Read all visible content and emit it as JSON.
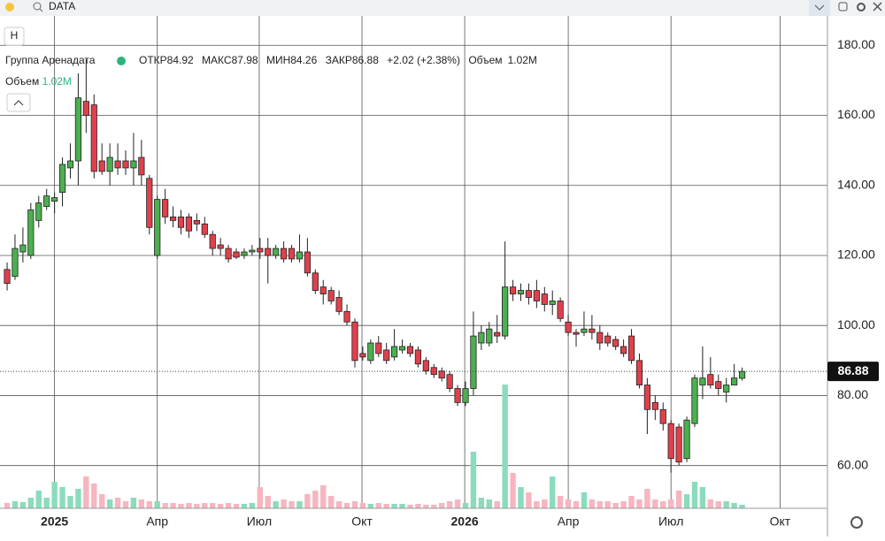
{
  "search": "DATA",
  "interval_button": "Н",
  "chart_data": {
    "type": "candlestick",
    "name": "Группа Аренадата",
    "legend": {
      "open_label": "ОТКР",
      "high_label": "МАКС",
      "low_label": "МИН",
      "close_label": "ЗАКР",
      "change": "+2.02 (+2.38%)",
      "volume_label": "Объем",
      "volume_value": "1.02M"
    },
    "open": [
      116,
      114,
      121,
      120,
      130,
      134,
      135.5,
      138,
      145,
      147,
      164,
      163,
      147,
      144,
      147,
      147,
      145,
      148,
      142,
      120,
      136,
      131,
      131,
      131,
      130,
      129,
      126,
      123,
      122,
      121,
      120,
      121,
      122,
      122,
      120,
      122,
      122,
      119,
      121,
      115,
      111,
      110,
      108,
      104,
      101,
      92,
      90,
      95,
      93,
      91,
      93,
      94,
      93,
      90,
      88,
      87,
      86,
      82,
      78,
      82,
      95,
      95,
      98,
      97,
      111,
      109,
      110,
      110,
      109,
      106,
      107,
      101,
      98,
      98,
      99,
      98,
      97,
      96,
      94,
      97,
      90,
      83,
      78,
      76,
      72,
      71,
      62,
      72,
      83,
      86,
      84,
      81,
      83,
      84.92
    ],
    "close": [
      112,
      122,
      123,
      133,
      135,
      137,
      136.5,
      146,
      147,
      165,
      160,
      144,
      144,
      148,
      145,
      145,
      147,
      143,
      128,
      136,
      131,
      130,
      128,
      127,
      129,
      126,
      122,
      122,
      119,
      119.5,
      121,
      121.5,
      121,
      120,
      122,
      119,
      119,
      121,
      115,
      110,
      109,
      107,
      104,
      101,
      90,
      91,
      95,
      92,
      90,
      94,
      94,
      92,
      89,
      87,
      86,
      85,
      82,
      78,
      82,
      97,
      98,
      99,
      97,
      111,
      109,
      110,
      108,
      107,
      106,
      107,
      102,
      98,
      97.5,
      99,
      98,
      95,
      95,
      94,
      92,
      90,
      83,
      76,
      76,
      72,
      62,
      61,
      73,
      85,
      85,
      83,
      82,
      83,
      85,
      86.88
    ],
    "high": [
      118,
      126,
      128,
      135,
      137,
      139,
      138,
      148,
      152,
      172,
      176,
      166,
      152,
      152,
      152,
      150,
      155,
      153,
      143,
      137,
      139,
      134,
      133,
      132,
      132,
      131,
      127,
      125,
      123,
      122,
      122,
      123,
      125,
      125,
      123,
      124,
      123,
      126,
      125,
      116,
      113,
      111,
      110,
      106,
      102,
      94,
      96,
      97,
      95,
      99,
      96,
      95,
      94,
      91,
      89,
      88,
      87,
      83,
      84,
      104,
      100,
      101,
      103,
      124,
      113,
      112,
      112,
      113,
      111,
      110,
      108,
      103,
      99,
      104,
      103,
      100,
      98,
      97,
      96,
      99,
      92,
      85,
      80,
      78,
      73,
      72,
      74,
      86,
      94,
      91,
      86,
      85,
      89,
      87.98
    ],
    "low": [
      110,
      113,
      118,
      119,
      128,
      133,
      132,
      134,
      142,
      140,
      155,
      142,
      143,
      140,
      143,
      143,
      140,
      140,
      126,
      119,
      129,
      128,
      126,
      125,
      127,
      125,
      120,
      120,
      118,
      119,
      119,
      120,
      119,
      112,
      119,
      118,
      118,
      118,
      114,
      109,
      106,
      106,
      103,
      100,
      88,
      90,
      89,
      91,
      89,
      90,
      92,
      91,
      88,
      86,
      85,
      84,
      81,
      77,
      77,
      80,
      93,
      94,
      95,
      96,
      107,
      107,
      106,
      105,
      104,
      103,
      101,
      97,
      94,
      97,
      96,
      93,
      94,
      93,
      91,
      89,
      82,
      69,
      73,
      70,
      58,
      60,
      61,
      71,
      79,
      82,
      80,
      78,
      83,
      84.26
    ],
    "volume": [
      1.5,
      2,
      1.75,
      3,
      5,
      3,
      7.5,
      6,
      3.5,
      5.5,
      9,
      7,
      4,
      2.5,
      3,
      2,
      3,
      2.5,
      2,
      2,
      1.5,
      1.5,
      1.25,
      1.5,
      1.25,
      1.5,
      1.5,
      1.25,
      1.5,
      1.25,
      1.25,
      1.5,
      6,
      3.5,
      2,
      2.5,
      2,
      2,
      4,
      5,
      6.5,
      3.5,
      2,
      1.5,
      2,
      1.5,
      1.25,
      1.5,
      1.25,
      1.25,
      1.25,
      1,
      1.25,
      1,
      1,
      1.5,
      2,
      2.5,
      1.5,
      16,
      3,
      2.5,
      2,
      35,
      10,
      6,
      4.5,
      2,
      2.5,
      9,
      3.5,
      2.5,
      2,
      4.5,
      2.5,
      2,
      2,
      1.5,
      2,
      3.5,
      2.5,
      5.5,
      2.5,
      2,
      2.5,
      5,
      4,
      7.5,
      6,
      2.5,
      2,
      2,
      1.5,
      1.02
    ],
    "xlim": [
      -0.9,
      103.8
    ],
    "xticks": [
      {
        "value": 6,
        "label": "2025"
      },
      {
        "value": 19,
        "label": "Апр"
      },
      {
        "value": 31.9,
        "label": "Июл"
      },
      {
        "value": 44.9,
        "label": "Окт"
      },
      {
        "value": 57.9,
        "label": "2026"
      },
      {
        "value": 71,
        "label": "Апр"
      },
      {
        "value": 84,
        "label": "Июл"
      },
      {
        "value": 97.8,
        "label": "Окт"
      }
    ],
    "ylim": [
      47.8,
      188.4
    ],
    "yticks": [
      {
        "value": 60,
        "label": "60.00"
      },
      {
        "value": 80,
        "label": "80.00"
      },
      {
        "value": 100,
        "label": "100.00"
      },
      {
        "value": 120,
        "label": "120.00"
      },
      {
        "value": 140,
        "label": "140.00"
      },
      {
        "value": 160,
        "label": "160.00"
      },
      {
        "value": 180,
        "label": "180.00"
      }
    ],
    "grid": true,
    "up_color": "#4caf50",
    "down_color": "#e0404c",
    "volume_up_color": "#8bdcbc",
    "volume_down_color": "#f7b5c0"
  }
}
